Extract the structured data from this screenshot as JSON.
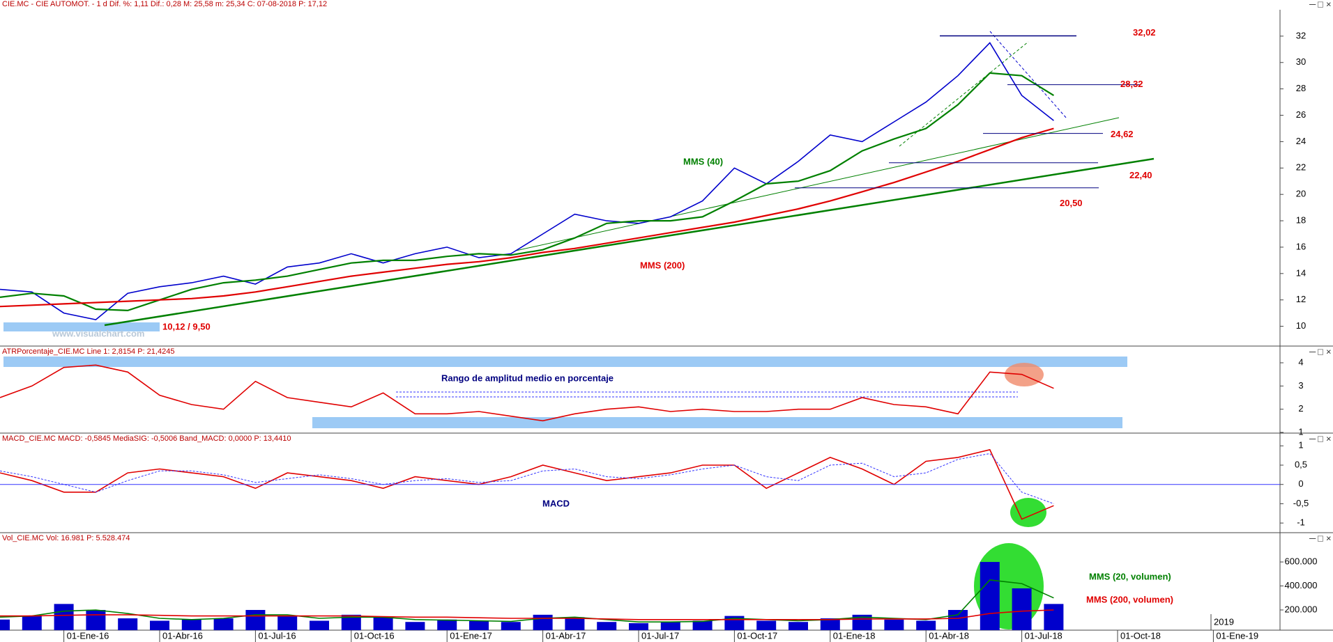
{
  "chart_data": [
    {
      "type": "line",
      "title": "CIE.MC - CIE AUTOMOT. - 1 d Dif. %: 1,11 Dif.: 0,28 M: 25,58 m: 25,34 C: 07-08-2018 P: 17,12",
      "ylim": [
        8.5,
        34
      ],
      "yticks": [
        10,
        12,
        14,
        16,
        18,
        20,
        22,
        24,
        26,
        28,
        30,
        32
      ],
      "series": [
        {
          "name": "CIE.MC",
          "color": "#0000cc",
          "values": [
            12.8,
            12.6,
            11.0,
            10.5,
            12.5,
            13.0,
            13.3,
            13.8,
            13.2,
            14.5,
            14.8,
            15.5,
            14.8,
            15.5,
            16.0,
            15.2,
            15.5,
            17.0,
            18.5,
            18.0,
            17.8,
            18.3,
            19.5,
            22.0,
            20.8,
            22.5,
            24.5,
            24.0,
            25.5,
            27.0,
            29.0,
            31.5,
            27.5,
            25.6,
            null,
            null,
            null,
            null,
            null,
            null
          ]
        },
        {
          "name": "MMS (40)",
          "color": "#008000",
          "values": [
            12.2,
            12.5,
            12.3,
            11.3,
            11.2,
            12.0,
            12.8,
            13.3,
            13.5,
            13.8,
            14.3,
            14.8,
            15.0,
            15.0,
            15.3,
            15.5,
            15.4,
            15.8,
            16.7,
            17.8,
            18.0,
            18.0,
            18.3,
            19.5,
            20.8,
            21.0,
            21.8,
            23.3,
            24.2,
            25.0,
            26.8,
            29.2,
            29.0,
            27.5,
            null,
            null,
            null,
            null,
            null,
            null
          ]
        },
        {
          "name": "MMS (200)",
          "color": "#e00000",
          "values": [
            11.5,
            11.6,
            11.7,
            11.8,
            11.9,
            12.0,
            12.1,
            12.3,
            12.6,
            13.0,
            13.4,
            13.8,
            14.1,
            14.4,
            14.7,
            14.9,
            15.2,
            15.6,
            15.9,
            16.3,
            16.7,
            17.1,
            17.5,
            17.9,
            18.4,
            18.9,
            19.5,
            20.2,
            20.9,
            21.7,
            22.5,
            23.4,
            24.3,
            25.0,
            null,
            null,
            null,
            null,
            null,
            null
          ]
        }
      ],
      "levels": [
        {
          "value": 32.02,
          "label": "32,02"
        },
        {
          "value": 28.32,
          "label": "28,32"
        },
        {
          "value": 24.62,
          "label": "24,62"
        },
        {
          "value": 22.4,
          "label": "22,40"
        },
        {
          "value": 20.5,
          "label": "20,50"
        }
      ],
      "annotations": [
        "10,12 / 9,50",
        "www.visualchart.com"
      ]
    },
    {
      "type": "line",
      "title": "ATRPorcentaje_CIE.MC Line 1: 2,8154 P: 21,4245",
      "annotation": "Rango de amplitud medio en porcentaje",
      "ylim": [
        0.97,
        4.72
      ],
      "yticks": [
        1,
        2,
        3,
        4
      ],
      "series": [
        {
          "name": "Line 1",
          "color": "#e00000",
          "values": [
            2.5,
            3.0,
            3.8,
            3.9,
            3.6,
            2.6,
            2.2,
            2.0,
            3.2,
            2.5,
            2.3,
            2.1,
            2.7,
            1.8,
            1.8,
            1.9,
            1.7,
            1.5,
            1.8,
            2.0,
            2.1,
            1.9,
            2.0,
            1.9,
            1.9,
            2.0,
            2.0,
            2.5,
            2.2,
            2.1,
            1.8,
            3.6,
            3.5,
            2.9,
            null,
            null,
            null,
            null,
            null,
            null
          ]
        }
      ]
    },
    {
      "type": "line",
      "title": "MACD_CIE.MC MACD: -0,5845 MediaSIG: -0,5006 Band_MACD: 0,0000 P: 13,4410",
      "annotation": "MACD",
      "ylim": [
        -1.25,
        1.33
      ],
      "yticks": [
        -1,
        {
          "value": -0.5,
          "label": "-0,5"
        },
        0,
        {
          "value": 0.5,
          "label": "0,5"
        },
        1
      ],
      "series": [
        {
          "name": "MACD",
          "color": "#e00000",
          "values": [
            0.3,
            0.1,
            -0.2,
            -0.2,
            0.3,
            0.4,
            0.3,
            0.2,
            -0.1,
            0.3,
            0.2,
            0.1,
            -0.1,
            0.2,
            0.1,
            0.0,
            0.2,
            0.5,
            0.3,
            0.1,
            0.2,
            0.3,
            0.5,
            0.5,
            -0.1,
            0.3,
            0.7,
            0.4,
            0.0,
            0.6,
            0.7,
            0.9,
            -0.9,
            -0.55,
            null,
            null,
            null,
            null,
            null,
            null
          ]
        },
        {
          "name": "MediaSIG",
          "color": "#3333ff",
          "values": [
            0.35,
            0.2,
            0.0,
            -0.2,
            0.1,
            0.35,
            0.35,
            0.25,
            0.05,
            0.15,
            0.25,
            0.15,
            0.0,
            0.1,
            0.15,
            0.05,
            0.1,
            0.35,
            0.4,
            0.2,
            0.15,
            0.25,
            0.4,
            0.5,
            0.2,
            0.1,
            0.5,
            0.55,
            0.2,
            0.3,
            0.65,
            0.8,
            -0.2,
            -0.5,
            null,
            null,
            null,
            null,
            null,
            null
          ]
        }
      ]
    },
    {
      "type": "bar",
      "title": "Vol_CIE.MC Vol: 16.981 P: 5.528.474",
      "ylim": [
        31600,
        844000
      ],
      "yticks": [
        {
          "value": 200000,
          "label": "200.000"
        },
        {
          "value": 400000,
          "label": "400.000"
        },
        {
          "value": 600000,
          "label": "600.000"
        }
      ],
      "color": "#0000cc",
      "values": [
        120000,
        150000,
        250000,
        200000,
        130000,
        110000,
        120000,
        130000,
        200000,
        150000,
        110000,
        160000,
        140000,
        100000,
        120000,
        110000,
        100000,
        160000,
        140000,
        100000,
        90000,
        100000,
        110000,
        150000,
        110000,
        100000,
        130000,
        160000,
        120000,
        110000,
        200000,
        600000,
        380000,
        250000,
        null,
        null,
        null,
        null,
        null,
        null
      ],
      "series": [
        {
          "name": "MMS (20, volumen)",
          "color": "#008000",
          "values": [
            140000,
            150000,
            190000,
            200000,
            170000,
            130000,
            120000,
            130000,
            160000,
            160000,
            130000,
            140000,
            140000,
            120000,
            115000,
            110000,
            105000,
            130000,
            140000,
            120000,
            100000,
            100000,
            105000,
            130000,
            120000,
            110000,
            120000,
            140000,
            130000,
            120000,
            160000,
            450000,
            420000,
            300000,
            null,
            null,
            null,
            null,
            null,
            null
          ]
        },
        {
          "name": "MMS (200, volumen)",
          "color": "#e00000",
          "values": [
            150000,
            150000,
            155000,
            160000,
            160000,
            155000,
            150000,
            150000,
            150000,
            150000,
            150000,
            150000,
            145000,
            140000,
            140000,
            135000,
            130000,
            130000,
            130000,
            125000,
            120000,
            120000,
            120000,
            120000,
            120000,
            120000,
            120000,
            125000,
            125000,
            125000,
            130000,
            170000,
            190000,
            200000,
            null,
            null,
            null,
            null,
            null,
            null
          ]
        }
      ],
      "categories": [
        null,
        null,
        "01-Ene-16",
        null,
        null,
        "01-Abr-16",
        null,
        null,
        "01-Jul-16",
        null,
        null,
        "01-Oct-16",
        null,
        null,
        "01-Ene-17",
        null,
        null,
        "01-Abr-17",
        null,
        null,
        "01-Jul-17",
        null,
        null,
        "01-Oct-17",
        null,
        null,
        "01-Ene-18",
        null,
        null,
        "01-Abr-18",
        null,
        null,
        "01-Jul-18",
        null,
        null,
        "01-Oct-18",
        null,
        null,
        "01-Ene-19",
        null
      ],
      "annotation": "2019"
    }
  ]
}
